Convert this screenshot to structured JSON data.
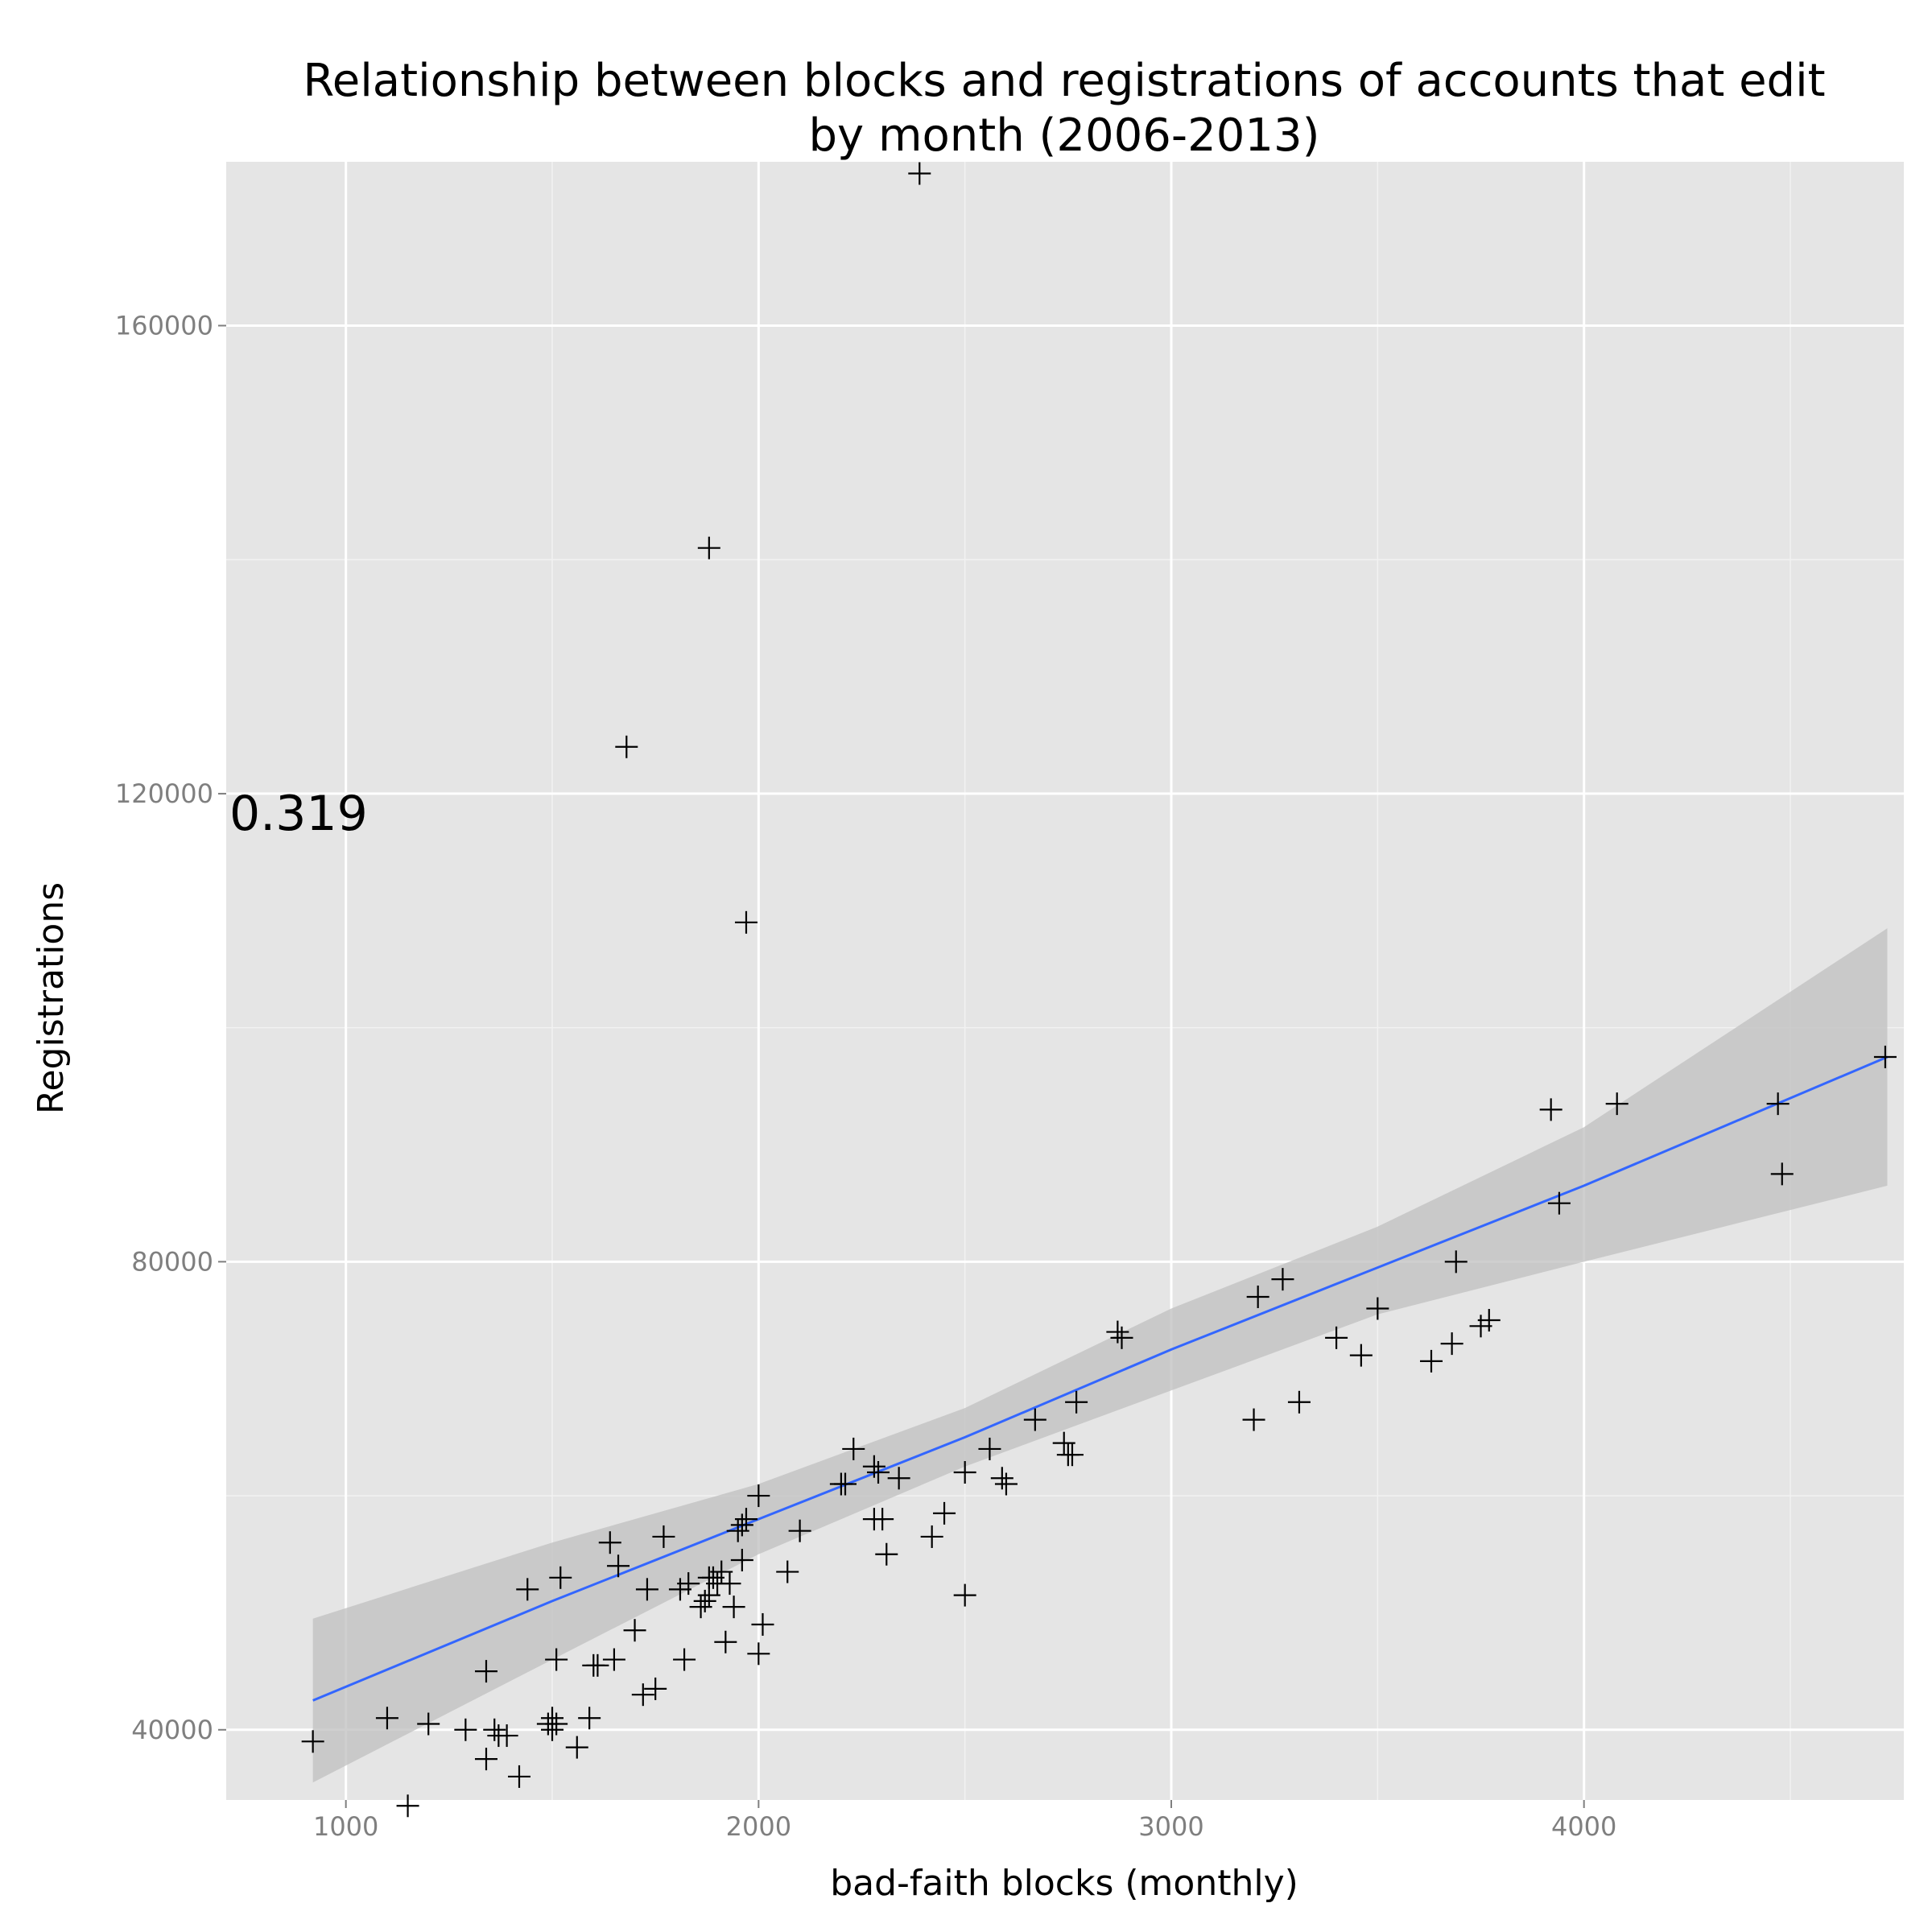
{
  "chart_data": {
    "type": "scatter",
    "title_lines": [
      "Relationship between blocks and registrations of accounts that edit",
      "by month (2006-2013)"
    ],
    "xlabel": "bad-faith blocks (monthly)",
    "ylabel": "Registrations",
    "xlim": [
      710,
      4775
    ],
    "ylim": [
      34000,
      174000
    ],
    "x_ticks": [
      1000,
      2000,
      3000,
      4000
    ],
    "x_tick_labels": [
      "1000",
      "2000",
      "3000",
      "4000"
    ],
    "y_ticks": [
      40000,
      80000,
      120000,
      160000
    ],
    "y_tick_labels": [
      "40000",
      "80000",
      "120000",
      "160000"
    ],
    "grid": true,
    "legend": "none",
    "annotation": "0.319",
    "marker": "plus",
    "colors": {
      "panel": "#e5e5e5",
      "grid_major": "#ffffff",
      "grid_minor": "#f2f2f2",
      "points": "#000000",
      "fit_line": "#3366ff",
      "confidence_band": "#bfbfbf"
    },
    "fit": {
      "method": "linear",
      "x": [
        920,
        1500,
        2000,
        2500,
        3000,
        3500,
        4000,
        4735
      ],
      "y": [
        42500,
        51000,
        58000,
        65000,
        72500,
        79500,
        86500,
        97500
      ],
      "lower": [
        35500,
        46000,
        55000,
        62500,
        69000,
        75500,
        80000,
        86500
      ],
      "upper": [
        49500,
        56000,
        61000,
        67500,
        76000,
        83000,
        91500,
        108500
      ]
    },
    "points": {
      "x": [
        2390,
        1880,
        1680,
        1970,
        4730,
        3920,
        4080,
        4470,
        4480,
        3940,
        3690,
        3500,
        3270,
        3210,
        3400,
        3460,
        3630,
        3680,
        3750,
        3770,
        3200,
        3310,
        2870,
        2880,
        2770,
        2670,
        2740,
        2750,
        2760,
        2560,
        2590,
        2600,
        2500,
        2450,
        2420,
        2500,
        2340,
        2310,
        2300,
        2290,
        2280,
        2280,
        2230,
        2210,
        2200,
        2100,
        2070,
        2000,
        2010,
        2000,
        1970,
        1960,
        1960,
        1950,
        1940,
        1930,
        1920,
        1910,
        1900,
        1890,
        1880,
        1880,
        1870,
        1860,
        1830,
        1820,
        1810,
        1770,
        1750,
        1730,
        1720,
        1700,
        1660,
        1650,
        1640,
        1610,
        1600,
        1590,
        1560,
        1520,
        1510,
        1510,
        1500,
        1500,
        1490,
        1440,
        1420,
        1390,
        1370,
        1360,
        1340,
        1340,
        1290,
        1200,
        1150,
        1100,
        920
      ],
      "y": [
        173000,
        141000,
        124000,
        109000,
        97500,
        93000,
        93500,
        93500,
        87500,
        85000,
        80000,
        76000,
        78500,
        77000,
        73500,
        72000,
        71500,
        73000,
        74500,
        75000,
        66500,
        68000,
        74000,
        73500,
        68000,
        66500,
        64500,
        63500,
        63500,
        64000,
        61500,
        61000,
        62000,
        58500,
        56500,
        51500,
        61500,
        55000,
        58000,
        62000,
        62500,
        58000,
        64000,
        61000,
        61000,
        57000,
        53500,
        60000,
        49000,
        46500,
        58000,
        57500,
        54500,
        57000,
        50500,
        52500,
        47500,
        53500,
        52500,
        53000,
        51500,
        53000,
        51000,
        50500,
        52500,
        46000,
        52000,
        56500,
        43500,
        52000,
        43000,
        48500,
        54000,
        46000,
        56000,
        45500,
        45500,
        41000,
        38500,
        53000,
        46000,
        40500,
        41000,
        40000,
        40500,
        52000,
        36000,
        39500,
        39500,
        40000,
        45000,
        37500,
        40000,
        40500,
        33500,
        41000,
        39000
      ]
    }
  }
}
